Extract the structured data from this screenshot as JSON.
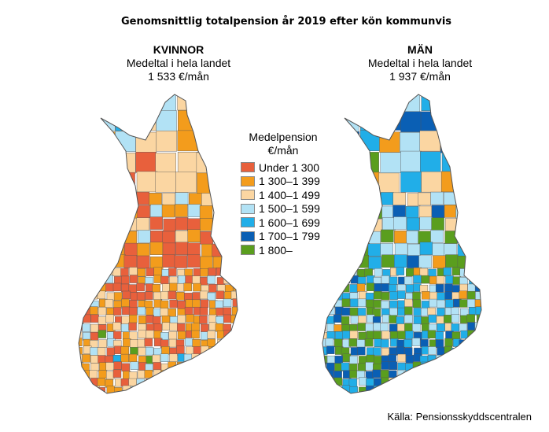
{
  "title": "Genomsnittlig totalpension år 2019 efter kön kommunvis",
  "women": {
    "heading": "KVINNOR",
    "subheading": "Medeltal i hela landet",
    "average": "1 533 €/mån"
  },
  "men": {
    "heading": "MÄN",
    "subheading": "Medeltal i hela landet",
    "average": "1 937 €/mån"
  },
  "legend": {
    "title_line1": "Medelpension",
    "title_line2": "€/mån",
    "items": [
      {
        "label": "Under 1 300",
        "color": "#e8603c"
      },
      {
        "label": "1 300–1 399",
        "color": "#f39c1c"
      },
      {
        "label": "1 400–1 499",
        "color": "#fbd6a2"
      },
      {
        "label": "1 500–1 599",
        "color": "#b2e2f5"
      },
      {
        "label": "1 600–1 699",
        "color": "#21aee8"
      },
      {
        "label": "1 700–1 799",
        "color": "#0a5fb4"
      },
      {
        "label": "1 800–",
        "color": "#5a9e1e"
      }
    ]
  },
  "source": "Källa: Pensionsskyddscentralen",
  "map_outline_color": "#555555"
}
